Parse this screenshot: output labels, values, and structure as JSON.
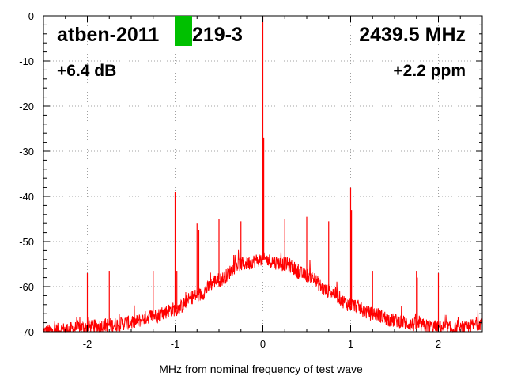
{
  "chart_data": {
    "type": "line",
    "overlay_text": {
      "top_left": "atben-2011",
      "top_left_suffix": "219-3",
      "top_right": "2439.5 MHz",
      "mid_left": "+6.4 dB",
      "mid_right": "+2.2 ppm"
    },
    "xlabel": "MHz from nominal frequency of test wave",
    "ylabel": "",
    "xlim": [
      -2.5,
      2.5
    ],
    "ylim": [
      -70,
      0
    ],
    "x_ticks": [
      -2,
      -1,
      0,
      1,
      2
    ],
    "x_tick_labels": [
      "-2",
      "-1",
      "0",
      "1",
      "2"
    ],
    "y_ticks": [
      0,
      -10,
      -20,
      -30,
      -40,
      -50,
      -60,
      -70
    ],
    "y_tick_labels": [
      "0",
      "-10",
      "-20",
      "-30",
      "-40",
      "-50",
      "-60",
      "-70"
    ],
    "grid": true,
    "series": [
      {
        "color": "#ff0000",
        "noise_floor": {
          "x": [
            -2.5,
            -2.25,
            -2.0,
            -1.75,
            -1.5,
            -1.25,
            -1.0,
            -0.75,
            -0.5,
            -0.25,
            0.0,
            0.25,
            0.5,
            0.75,
            1.0,
            1.25,
            1.5,
            1.75,
            2.0,
            2.25,
            2.5
          ],
          "y": [
            -70,
            -69.5,
            -69,
            -68.5,
            -68,
            -66.5,
            -65,
            -62,
            -58.5,
            -55,
            -54,
            -55,
            -57.5,
            -61,
            -64,
            -66,
            -67.5,
            -68.5,
            -69,
            -69.5,
            -68
          ]
        },
        "spurs": [
          {
            "x": -2.0,
            "y": -57
          },
          {
            "x": -1.75,
            "y": -56.5
          },
          {
            "x": -1.25,
            "y": -56.5
          },
          {
            "x": -1.0,
            "y": -39
          },
          {
            "x": -0.98,
            "y": -56.5
          },
          {
            "x": -0.75,
            "y": -46
          },
          {
            "x": -0.73,
            "y": -47.5
          },
          {
            "x": -0.5,
            "y": -45
          },
          {
            "x": -0.25,
            "y": -45.5
          },
          {
            "x": 0.0,
            "y": 0
          },
          {
            "x": 0.01,
            "y": -27
          },
          {
            "x": 0.25,
            "y": -45
          },
          {
            "x": 0.5,
            "y": -44.5
          },
          {
            "x": 0.75,
            "y": -45.5
          },
          {
            "x": 1.0,
            "y": -38
          },
          {
            "x": 1.01,
            "y": -43
          },
          {
            "x": 1.25,
            "y": -56.5
          },
          {
            "x": 1.75,
            "y": -56.5
          },
          {
            "x": 1.76,
            "y": -58
          },
          {
            "x": 2.0,
            "y": -57
          }
        ]
      }
    ],
    "marker": {
      "color": "#00c000"
    }
  }
}
